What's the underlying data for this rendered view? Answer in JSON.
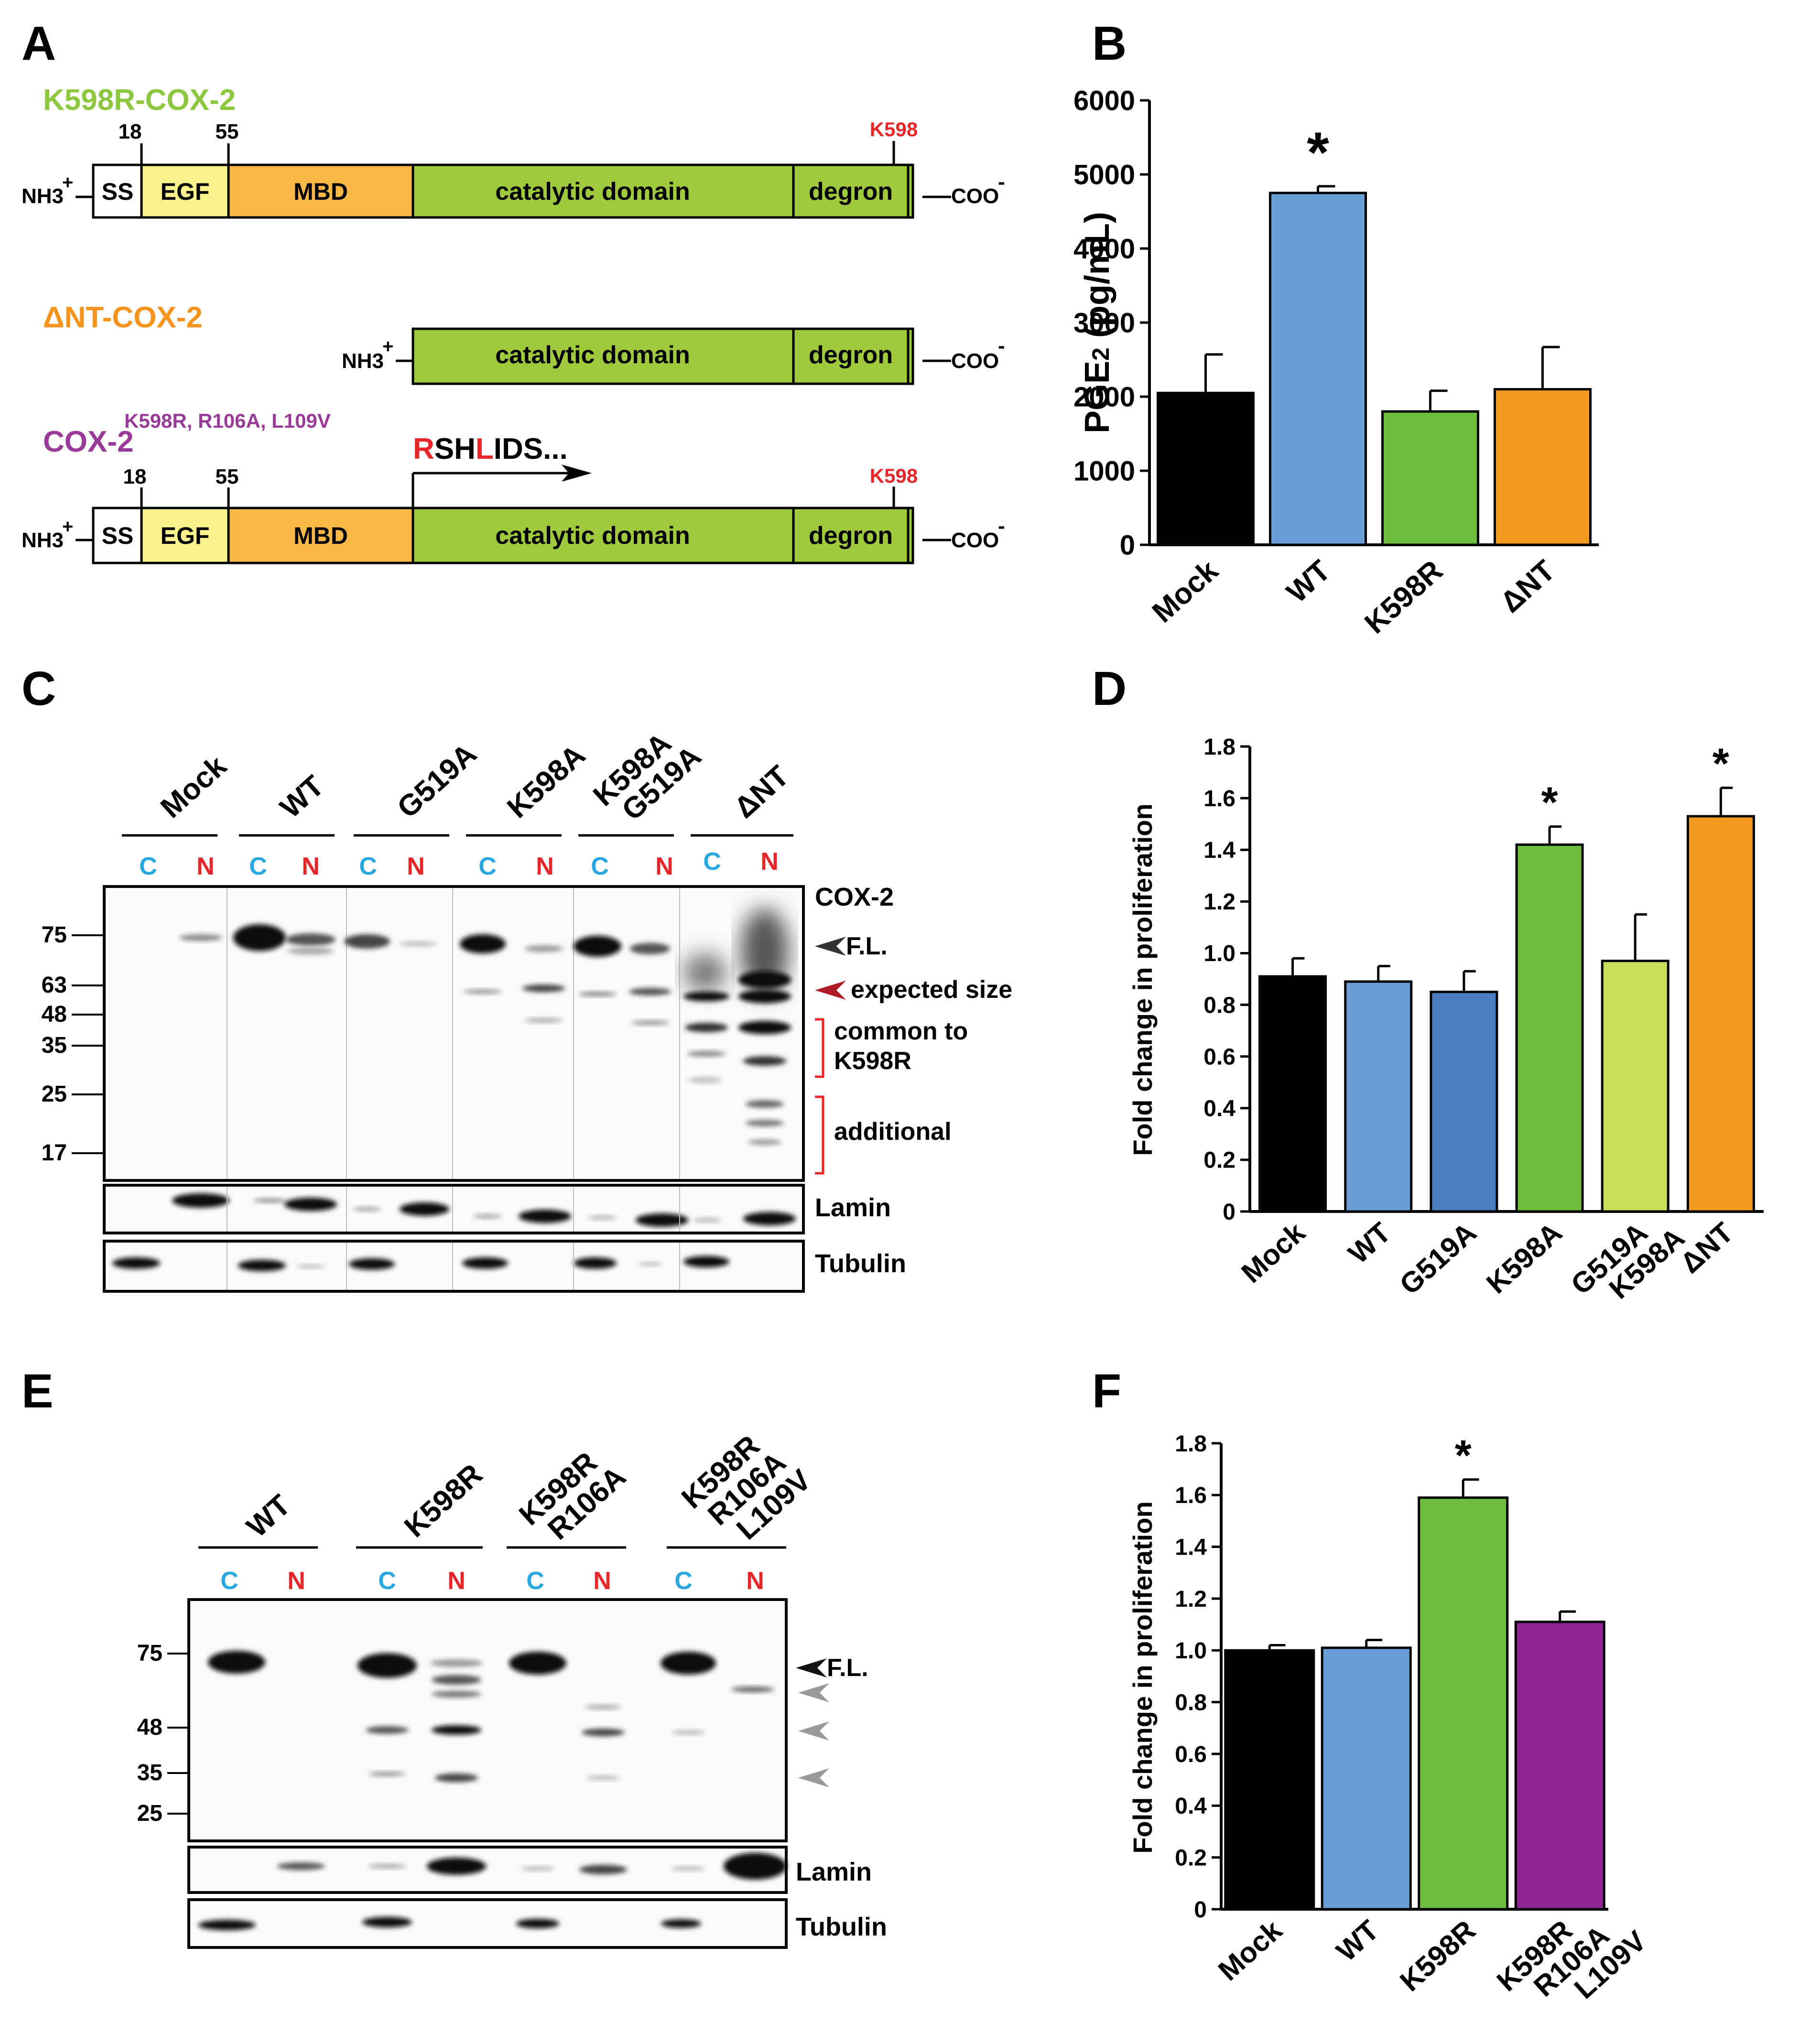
{
  "colors": {
    "black": "#000000",
    "blue": "#6a9fd6",
    "darkblue": "#4a7cc2",
    "green": "#6ebd3f",
    "lime": "#c8dd5a",
    "orange": "#f4981e",
    "purple": "#8e2590",
    "red": "#e8262a",
    "cyan": "#29a8e0",
    "ltgreen": "#9fca3c",
    "yellow": "#fbf48c",
    "mbd": "#fbb845",
    "pGreen": "#6dbf3d",
    "pOrange": "#f6a32a",
    "pPurple": "#9a3a98"
  },
  "panelA": {
    "label": "A",
    "construct1": {
      "title": "K598R-COX-2",
      "n18": "18",
      "n55": "55",
      "site": "K598"
    },
    "construct2": {
      "title": "ΔNT-COX-2"
    },
    "construct3": {
      "title": "COX-2",
      "mutations": "K598R, R106A, L109V",
      "n18": "18",
      "n55": "55",
      "site": "K598",
      "seq": {
        "r": "R",
        "sh": "SH",
        "l": "L",
        "rest": "IDS..."
      }
    },
    "domains": {
      "nterm": "NH3",
      "plus": "+",
      "ss": "SS",
      "egf": "EGF",
      "mbd": "MBD",
      "catalytic": "catalytic domain",
      "degron": "degron",
      "cterm": "COO",
      "minus": "-"
    }
  },
  "panelB": {
    "label": "B"
  },
  "panelC": {
    "label": "C",
    "lane_headers": [
      "Mock",
      "WT",
      "G519A",
      "K598A",
      "K598A",
      "G519A",
      "ΔNT"
    ],
    "c": "C",
    "n": "N",
    "mw": [
      "75",
      "63",
      "48",
      "35",
      "25",
      "17"
    ],
    "title": "COX-2",
    "fl": "F.L.",
    "expected": "expected size",
    "common1": "common to",
    "common2": "K598R",
    "additional": "additional",
    "lamin": "Lamin",
    "tubulin": "Tubulin"
  },
  "panelD": {
    "label": "D"
  },
  "panelE": {
    "label": "E",
    "lane_headers": [
      "WT",
      "K598R",
      "K598R",
      "R106A",
      "K598R",
      "R106A",
      "L109V"
    ],
    "c": "C",
    "n": "N",
    "mw": [
      "75",
      "48",
      "35",
      "25"
    ],
    "fl": "F.L.",
    "lamin": "Lamin",
    "tubulin": "Tubulin"
  },
  "panelF": {
    "label": "F"
  },
  "chart_data": [
    {
      "panel": "B",
      "type": "bar",
      "categories": [
        "Mock",
        "WT",
        "K598R",
        "ΔNT"
      ],
      "values": [
        2050,
        4750,
        1800,
        2100
      ],
      "errors": [
        520,
        90,
        280,
        570
      ],
      "ylabel": "PGE2 (pg/mL)",
      "ylabel_main": "PGE",
      "ylabel_sub": "2",
      "ylabel_unit": " (pg/mL)",
      "ylim": [
        0,
        6000
      ],
      "ticks": [
        "0",
        "1000",
        "2000",
        "3000",
        "4000",
        "5000",
        "6000"
      ],
      "significant": [
        false,
        true,
        false,
        false
      ],
      "star": "*",
      "colors": [
        "#000000",
        "#6a9fd6",
        "#6ebd3f",
        "#f4981e"
      ]
    },
    {
      "panel": "D",
      "type": "bar",
      "categories": [
        "Mock",
        "WT",
        "G519A",
        "K598A",
        "G519A K598A",
        "ΔNT"
      ],
      "values": [
        0.91,
        0.89,
        0.85,
        1.42,
        0.97,
        1.53
      ],
      "errors": [
        0.07,
        0.06,
        0.08,
        0.07,
        0.18,
        0.11
      ],
      "ylabel": "Fold change in proliferation",
      "ylim": [
        0,
        1.8
      ],
      "ticks": [
        "0",
        "0.2",
        "0.4",
        "0.6",
        "0.8",
        "1.0",
        "1.2",
        "1.4",
        "1.6",
        "1.8"
      ],
      "significant": [
        false,
        false,
        false,
        true,
        false,
        true
      ],
      "star": "*",
      "colors": [
        "#000000",
        "#6a9fd6",
        "#4a7cc2",
        "#6ebd3f",
        "#c8dd5a",
        "#f4981e"
      ]
    },
    {
      "panel": "F",
      "type": "bar",
      "categories": [
        "Mock",
        "WT",
        "K598R",
        "K598R R106A L109V"
      ],
      "values": [
        1.0,
        1.01,
        1.59,
        1.11
      ],
      "errors": [
        0.02,
        0.03,
        0.07,
        0.04
      ],
      "ylabel": "Fold change in proliferation",
      "ylim": [
        0,
        1.8
      ],
      "ticks": [
        "0",
        "0.2",
        "0.4",
        "0.6",
        "0.8",
        "1.0",
        "1.2",
        "1.4",
        "1.6",
        "1.8"
      ],
      "significant": [
        false,
        false,
        true,
        false
      ],
      "star": "*",
      "colors": [
        "#000000",
        "#6a9fd6",
        "#6ebd3f",
        "#8e2590"
      ]
    }
  ]
}
